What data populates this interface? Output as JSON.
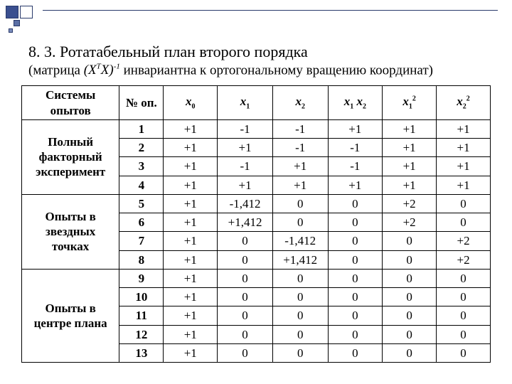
{
  "corner_colors": {
    "border": "#2a3a6b",
    "big": "#3a4f8f",
    "mid": "#5b6fa5",
    "small": "#7a8cbc"
  },
  "heading": {
    "number": "8. 3.",
    "title": "Ротатабельный план второго порядка",
    "subtitle_prefix": "(матрица ",
    "subtitle_matrix_left": "(X",
    "subtitle_matrix_sup": "T",
    "subtitle_matrix_right": "X)",
    "subtitle_matrix_pow": "-1",
    "subtitle_suffix": " инвариантна к ортогональному вращению координат)"
  },
  "table": {
    "headers": {
      "group": "Системы опытов",
      "n": "№ оп.",
      "x0_base": "x",
      "x0_sub": "0",
      "x1_base": "x",
      "x1_sub": "1",
      "x2_base": "x",
      "x2_sub": "2",
      "x1x2_a_base": "x",
      "x1x2_a_sub": "1",
      "x1x2_b_base": "x",
      "x1x2_b_sub": "2",
      "x1sq_base": "x",
      "x1sq_sub": "1",
      "x1sq_sup": "2",
      "x2sq_base": "x",
      "x2sq_sub": "2",
      "x2sq_sup": "2"
    },
    "groups": [
      {
        "label": "Полный факторный эксперимент",
        "rows": [
          {
            "n": "1",
            "x0": "+1",
            "x1": "-1",
            "x2": "-1",
            "x1x2": "+1",
            "x1sq": "+1",
            "x2sq": "+1"
          },
          {
            "n": "2",
            "x0": "+1",
            "x1": "+1",
            "x2": "-1",
            "x1x2": "-1",
            "x1sq": "+1",
            "x2sq": "+1"
          },
          {
            "n": "3",
            "x0": "+1",
            "x1": "-1",
            "x2": "+1",
            "x1x2": "-1",
            "x1sq": "+1",
            "x2sq": "+1"
          },
          {
            "n": "4",
            "x0": "+1",
            "x1": "+1",
            "x2": "+1",
            "x1x2": "+1",
            "x1sq": "+1",
            "x2sq": "+1"
          }
        ]
      },
      {
        "label": "Опыты в звездных точках",
        "rows": [
          {
            "n": "5",
            "x0": "+1",
            "x1": "-1,412",
            "x2": "0",
            "x1x2": "0",
            "x1sq": "+2",
            "x2sq": "0"
          },
          {
            "n": "6",
            "x0": "+1",
            "x1": "+1,412",
            "x2": "0",
            "x1x2": "0",
            "x1sq": "+2",
            "x2sq": "0"
          },
          {
            "n": "7",
            "x0": "+1",
            "x1": "0",
            "x2": "-1,412",
            "x1x2": "0",
            "x1sq": "0",
            "x2sq": "+2"
          },
          {
            "n": "8",
            "x0": "+1",
            "x1": "0",
            "x2": "+1,412",
            "x1x2": "0",
            "x1sq": "0",
            "x2sq": "+2"
          }
        ]
      },
      {
        "label": "Опыты в центре плана",
        "rows": [
          {
            "n": "9",
            "x0": "+1",
            "x1": "0",
            "x2": "0",
            "x1x2": "0",
            "x1sq": "0",
            "x2sq": "0"
          },
          {
            "n": "10",
            "x0": "+1",
            "x1": "0",
            "x2": "0",
            "x1x2": "0",
            "x1sq": "0",
            "x2sq": "0"
          },
          {
            "n": "11",
            "x0": "+1",
            "x1": "0",
            "x2": "0",
            "x1x2": "0",
            "x1sq": "0",
            "x2sq": "0"
          },
          {
            "n": "12",
            "x0": "+1",
            "x1": "0",
            "x2": "0",
            "x1x2": "0",
            "x1sq": "0",
            "x2sq": "0"
          },
          {
            "n": "13",
            "x0": "+1",
            "x1": "0",
            "x2": "0",
            "x1x2": "0",
            "x1sq": "0",
            "x2sq": "0"
          }
        ]
      }
    ]
  }
}
